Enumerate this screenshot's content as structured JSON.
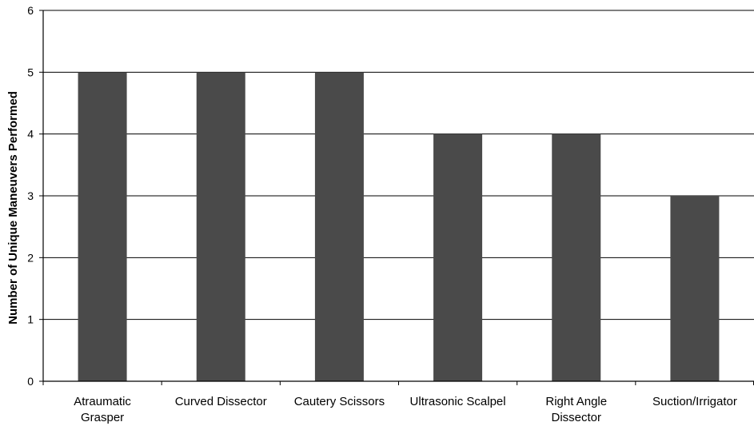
{
  "chart_data": {
    "type": "bar",
    "title": "",
    "xlabel": "",
    "ylabel": "Number of Unique Maneuvers Performed",
    "ylim": [
      0,
      6
    ],
    "yticks": [
      0,
      1,
      2,
      3,
      4,
      5,
      6
    ],
    "grid": true,
    "categories": [
      [
        "Atraumatic",
        "Grasper"
      ],
      [
        "Curved Dissector"
      ],
      [
        "Cautery Scissors"
      ],
      [
        "Ultrasonic Scalpel"
      ],
      [
        "Right Angle",
        "Dissector"
      ],
      [
        "Suction/Irrigator"
      ]
    ],
    "values": [
      5,
      5,
      5,
      4,
      4,
      3
    ],
    "bar_color": "#4a4a4a"
  }
}
